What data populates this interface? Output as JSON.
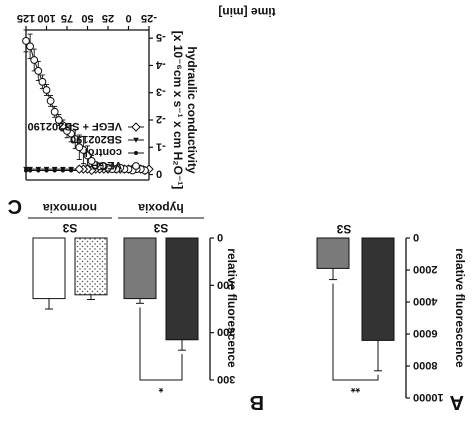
{
  "chart_data": [
    {
      "panel": "C",
      "type": "line",
      "title": "",
      "xlabel": "time [min]",
      "ylabel": "hydraulic conductivity [*10^-6 cm * s^-1 * cm H2O^-1]",
      "ylabel_lines": [
        "hydraulic conductivity",
        "[x 10⁻⁶cm x s⁻¹ x cm H₂O⁻¹]"
      ],
      "x_ticks": [
        "-25",
        "0",
        "25",
        "50",
        "75",
        "100",
        "125"
      ],
      "y_ticks": [
        "0",
        "-1",
        "-2",
        "-3",
        "-4",
        "-5"
      ],
      "xlim": [
        -25,
        125
      ],
      "ylim": [
        -5.3,
        0.2
      ],
      "grid": false,
      "legend_position": "bottom-left",
      "series": [
        {
          "name": "VEGF",
          "marker": "open-circle",
          "x": [
            -20,
            -15,
            -10,
            -5,
            0,
            5,
            10,
            15,
            20,
            25,
            30,
            35,
            40,
            45,
            50,
            55,
            60,
            65,
            70,
            75,
            80,
            85,
            90,
            95,
            100,
            105,
            110,
            115,
            120,
            125
          ],
          "y": [
            -0.15,
            -0.2,
            -0.2,
            -0.15,
            -0.2,
            -0.2,
            -0.25,
            -0.2,
            -0.2,
            -0.25,
            -0.3,
            -0.3,
            -0.35,
            -0.5,
            -0.7,
            -0.9,
            -1.0,
            -1.3,
            -1.5,
            -1.6,
            -1.8,
            -2.0,
            -2.3,
            -2.7,
            -3.1,
            -3.4,
            -3.8,
            -4.2,
            -4.7,
            -4.9
          ],
          "err": [
            0.05,
            0.05,
            0.05,
            0.05,
            0.05,
            0.05,
            0.05,
            0.05,
            0.05,
            0.05,
            0.05,
            0.05,
            0.1,
            0.2,
            0.35,
            0.5,
            0.45,
            0.35,
            0.3,
            0.25,
            0.2,
            0.2,
            0.2,
            0.2,
            0.2,
            0.25,
            0.35,
            0.4,
            0.45,
            0.4
          ]
        },
        {
          "name": "control",
          "marker": "filled-circle",
          "x": [
            -20,
            -10,
            0,
            10,
            20,
            30,
            40,
            50,
            60,
            70,
            80,
            90,
            100,
            110,
            120,
            125
          ],
          "y": [
            -0.15,
            -0.15,
            -0.15,
            -0.15,
            -0.15,
            -0.15,
            -0.15,
            -0.15,
            -0.15,
            -0.15,
            -0.15,
            -0.15,
            -0.15,
            -0.15,
            -0.15,
            -0.15
          ],
          "err": []
        },
        {
          "name": "SB202190",
          "marker": "filled-triangle",
          "x": [
            -20,
            -10,
            0,
            10,
            20,
            30,
            40,
            50,
            60,
            70,
            80,
            90,
            100,
            110,
            120,
            125
          ],
          "y": [
            -0.2,
            -0.2,
            -0.2,
            -0.2,
            -0.2,
            -0.2,
            -0.2,
            -0.2,
            -0.2,
            -0.2,
            -0.2,
            -0.2,
            -0.2,
            -0.2,
            -0.2,
            -0.2
          ],
          "err": []
        },
        {
          "name": "VEGF + SB202190",
          "marker": "open-diamond",
          "x": [
            -25,
            -20,
            -15,
            -10,
            -5,
            0,
            5,
            10,
            15,
            20,
            25,
            30,
            35,
            40,
            45,
            50,
            55,
            60
          ],
          "y": [
            -0.2,
            -0.15,
            -0.2,
            -0.25,
            -0.2,
            -0.2,
            -0.2,
            -0.2,
            -0.2,
            -0.25,
            -0.2,
            -0.2,
            -0.2,
            -0.2,
            -0.15,
            -0.2,
            -0.2,
            -0.2
          ],
          "err": []
        }
      ]
    },
    {
      "panel": "A",
      "type": "bar",
      "ylabel": "relative fluorescence",
      "y_ticks": [
        "0",
        "2000",
        "4000",
        "6000",
        "8000",
        "10000"
      ],
      "ylim": [
        0,
        10000
      ],
      "group_label": "S3",
      "bars": [
        {
          "value": 6400,
          "err": 1900,
          "color": "#333333"
        },
        {
          "value": 1900,
          "err": 700,
          "color": "#7a7a7a"
        }
      ],
      "significance": "**"
    },
    {
      "panel": "B",
      "type": "bar",
      "ylabel": "relative fluorescence",
      "y_ticks": [
        "0",
        "100",
        "200",
        "300"
      ],
      "ylim": [
        0,
        300
      ],
      "groups": [
        {
          "label": "hypoxia",
          "sub_label": "S3"
        },
        {
          "label": "normoxia",
          "sub_label": "S3"
        }
      ],
      "bars": [
        {
          "group": "hypoxia",
          "value": 215,
          "err": 22,
          "color": "#333333",
          "pattern": "solid"
        },
        {
          "group": "hypoxia",
          "value": 128,
          "err": 10,
          "color": "#7a7a7a",
          "pattern": "solid"
        },
        {
          "group": "normoxia",
          "value": 120,
          "err": 10,
          "color": "#ffffff",
          "pattern": "dotted"
        },
        {
          "group": "normoxia",
          "value": 128,
          "err": 22,
          "color": "#ffffff",
          "pattern": "solid"
        }
      ],
      "significance": "*"
    }
  ]
}
